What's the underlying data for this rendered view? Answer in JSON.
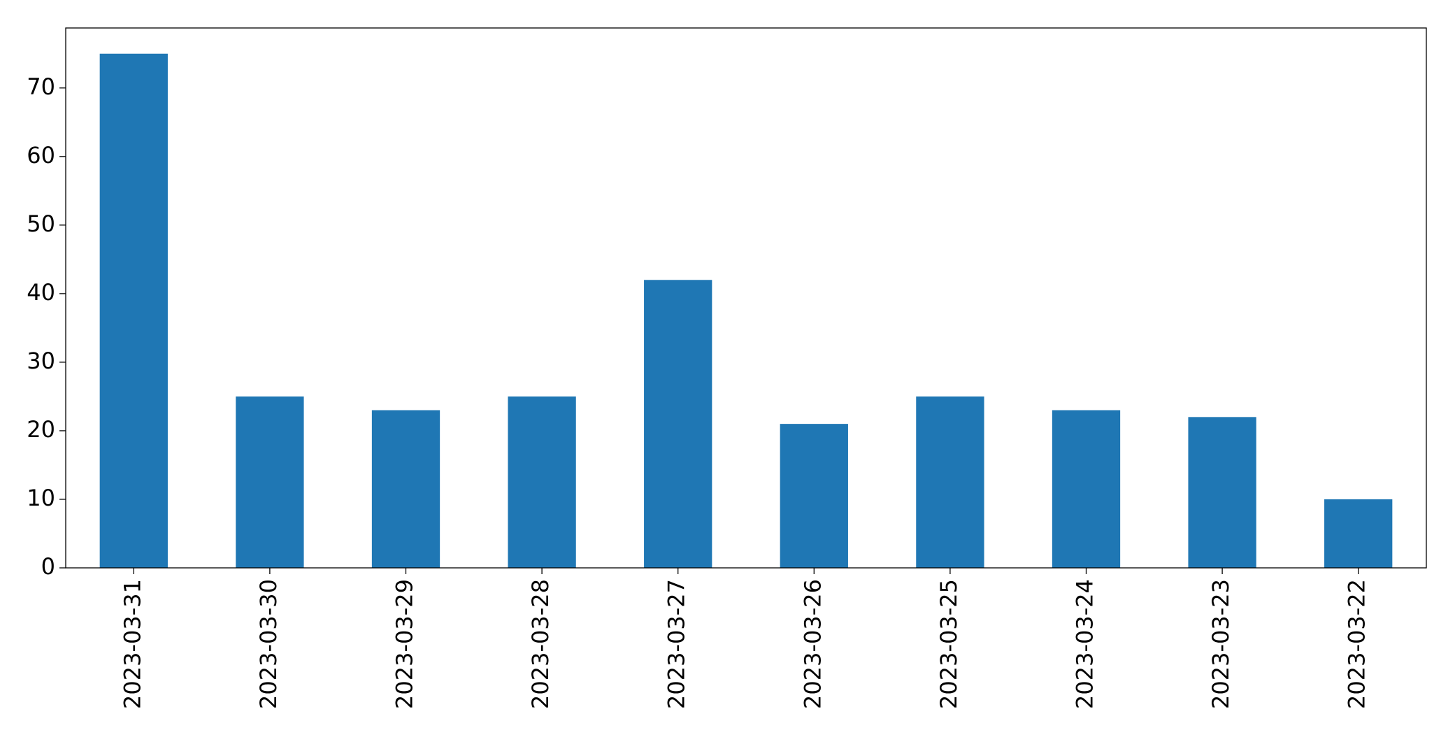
{
  "chart_data": {
    "type": "bar",
    "categories": [
      "2023-03-31",
      "2023-03-30",
      "2023-03-29",
      "2023-03-28",
      "2023-03-27",
      "2023-03-26",
      "2023-03-25",
      "2023-03-24",
      "2023-03-23",
      "2023-03-22"
    ],
    "values": [
      75,
      25,
      23,
      25,
      42,
      21,
      25,
      23,
      22,
      10
    ],
    "color": "#1f77b4",
    "ylim": [
      0,
      78.75
    ],
    "yticks": [
      0,
      10,
      20,
      30,
      40,
      50,
      60,
      70
    ],
    "grid": false
  }
}
